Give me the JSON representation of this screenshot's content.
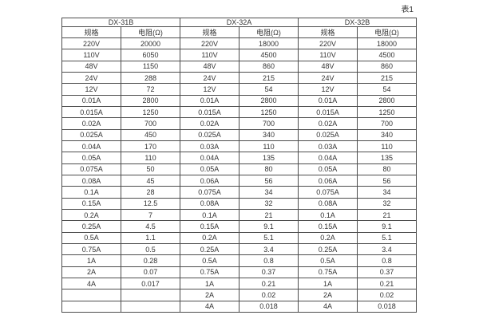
{
  "caption": "表1",
  "colors": {
    "background": "#ffffff",
    "border": "#4d4d4d",
    "text": "#333333"
  },
  "table": {
    "groups": [
      {
        "name": "DX-31B"
      },
      {
        "name": "DX-32A"
      },
      {
        "name": "DX-32B"
      }
    ],
    "sub_headers": [
      "规格",
      "电阻(Ω)",
      "规格",
      "电阻(Ω)",
      "规格",
      "电阻(Ω)"
    ],
    "rows": [
      [
        "220V",
        "20000",
        "220V",
        "18000",
        "220V",
        "18000"
      ],
      [
        "110V",
        "6050",
        "110V",
        "4500",
        "110V",
        "4500"
      ],
      [
        "48V",
        "1150",
        "48V",
        "860",
        "48V",
        "860"
      ],
      [
        "24V",
        "288",
        "24V",
        "215",
        "24V",
        "215"
      ],
      [
        "12V",
        "72",
        "12V",
        "54",
        "12V",
        "54"
      ],
      [
        "0.01A",
        "2800",
        "0.01A",
        "2800",
        "0.01A",
        "2800"
      ],
      [
        "0.015A",
        "1250",
        "0.015A",
        "1250",
        "0.015A",
        "1250"
      ],
      [
        "0.02A",
        "700",
        "0.02A",
        "700",
        "0.02A",
        "700"
      ],
      [
        "0.025A",
        "450",
        "0.025A",
        "340",
        "0.025A",
        "340"
      ],
      [
        "0.04A",
        "170",
        "0.03A",
        "110",
        "0.03A",
        "110"
      ],
      [
        "0.05A",
        "110",
        "0.04A",
        "135",
        "0.04A",
        "135"
      ],
      [
        "0.075A",
        "50",
        "0.05A",
        "80",
        "0.05A",
        "80"
      ],
      [
        "0.08A",
        "45",
        "0.06A",
        "56",
        "0.06A",
        "56"
      ],
      [
        "0.1A",
        "28",
        "0.075A",
        "34",
        "0.075A",
        "34"
      ],
      [
        "0.15A",
        "12.5",
        "0.08A",
        "32",
        "0.08A",
        "32"
      ],
      [
        "0.2A",
        "7",
        "0.1A",
        "21",
        "0.1A",
        "21"
      ],
      [
        "0.25A",
        "4.5",
        "0.15A",
        "9.1",
        "0.15A",
        "9.1"
      ],
      [
        "0.5A",
        "1.1",
        "0.2A",
        "5.1",
        "0.2A",
        "5.1"
      ],
      [
        "0.75A",
        "0.5",
        "0.25A",
        "3.4",
        "0.25A",
        "3.4"
      ],
      [
        "1A",
        "0.28",
        "0.5A",
        "0.8",
        "0.5A",
        "0.8"
      ],
      [
        "2A",
        "0.07",
        "0.75A",
        "0.37",
        "0.75A",
        "0.37"
      ],
      [
        "4A",
        "0.017",
        "1A",
        "0.21",
        "1A",
        "0.21"
      ],
      [
        "",
        "",
        "2A",
        "0.02",
        "2A",
        "0.02"
      ],
      [
        "",
        "",
        "4A",
        "0.018",
        "4A",
        "0.018"
      ]
    ]
  }
}
